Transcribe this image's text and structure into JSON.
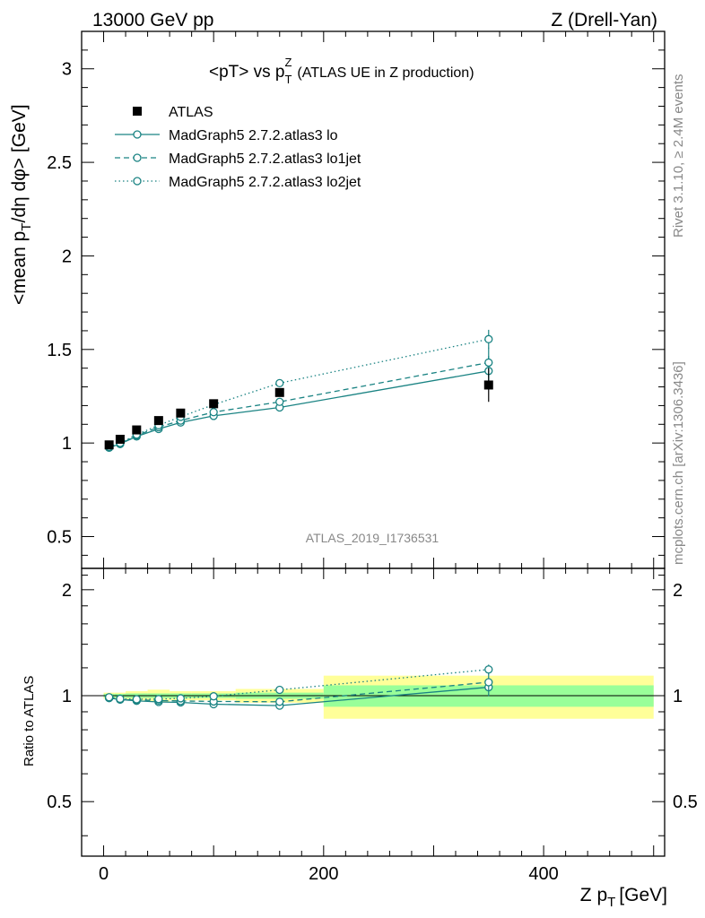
{
  "header": {
    "left": "13000 GeV pp",
    "right": "Z (Drell-Yan)"
  },
  "side_labels": {
    "rivet": "Rivet 3.1.10, ≥ 2.4M events",
    "mcplots": "mcplots.cern.ch [arXiv:1306.3436]"
  },
  "watermark": "ATLAS_2019_I1736531",
  "chart_data": {
    "type": "line",
    "title_main": "<pT> vs p",
    "title_sup": "Z",
    "title_sub": "T",
    "title_rest": "(ATLAS UE in Z production)",
    "ylabel_main": "<mean p",
    "ylabel_sub1": "T",
    "ylabel_rest": "/dη dφ> [GeV]",
    "xlabel_main": "Z p",
    "xlabel_sub": "T",
    "xlabel_rest": "[GeV]",
    "ratio_ylabel": "Ratio to ATLAS",
    "xlim": [
      -20,
      510
    ],
    "ylim": [
      0.33,
      3.2
    ],
    "ratio_ylim": [
      0.35,
      2.3
    ],
    "x_ticks": [
      0,
      200,
      400
    ],
    "x_tick_labels": [
      "0",
      "200",
      "400"
    ],
    "y_ticks": [
      0.5,
      1,
      1.5,
      2,
      2.5,
      3
    ],
    "y_tick_labels": [
      "0.5",
      "1",
      "1.5",
      "2",
      "2.5",
      "3"
    ],
    "ratio_ticks": [
      0.5,
      1,
      2
    ],
    "ratio_tick_labels": [
      "0.5",
      "1",
      "2"
    ],
    "legend_position": "top-left",
    "colors": {
      "data": "#000000",
      "mc": "#1a8383",
      "band_inner": "#99ff99",
      "band_outer": "#ffff99"
    },
    "data": {
      "name": "ATLAS",
      "x": [
        5,
        15,
        30,
        50,
        70,
        100,
        160,
        350
      ],
      "y": [
        0.99,
        1.02,
        1.07,
        1.12,
        1.16,
        1.21,
        1.27,
        1.31
      ],
      "yerr": [
        0.01,
        0.01,
        0.01,
        0.01,
        0.01,
        0.01,
        0.02,
        0.09
      ],
      "xedges": [
        0,
        10,
        20,
        40,
        60,
        80,
        120,
        200,
        500
      ],
      "ratio_band_inner": [
        0.012,
        0.012,
        0.015,
        0.015,
        0.015,
        0.015,
        0.02,
        0.07
      ],
      "ratio_band_outer": [
        0.02,
        0.02,
        0.03,
        0.04,
        0.03,
        0.03,
        0.045,
        0.14
      ]
    },
    "series": [
      {
        "name": "MadGraph5 2.7.2.atlas3 lo",
        "style": "solid",
        "x": [
          5,
          15,
          30,
          50,
          70,
          100,
          160,
          350
        ],
        "y": [
          0.975,
          0.995,
          1.035,
          1.075,
          1.11,
          1.145,
          1.19,
          1.385
        ],
        "yerr": [
          0.005,
          0.005,
          0.005,
          0.005,
          0.005,
          0.007,
          0.015,
          0.08
        ],
        "ratio": [
          0.985,
          0.975,
          0.967,
          0.96,
          0.957,
          0.946,
          0.937,
          1.057
        ]
      },
      {
        "name": "MadGraph5 2.7.2.atlas3 lo1jet",
        "style": "dashed",
        "x": [
          5,
          15,
          30,
          50,
          70,
          100,
          160,
          350
        ],
        "y": [
          0.975,
          0.995,
          1.04,
          1.085,
          1.12,
          1.165,
          1.22,
          1.43
        ],
        "yerr": [
          0.005,
          0.005,
          0.005,
          0.005,
          0.005,
          0.007,
          0.015,
          0.08
        ],
        "ratio": [
          0.985,
          0.975,
          0.972,
          0.969,
          0.966,
          0.963,
          0.961,
          1.092
        ]
      },
      {
        "name": "MadGraph5 2.7.2.atlas3 lo2jet",
        "style": "dotted",
        "x": [
          5,
          15,
          30,
          50,
          70,
          100,
          160,
          350
        ],
        "y": [
          0.98,
          1.0,
          1.045,
          1.095,
          1.14,
          1.205,
          1.32,
          1.555
        ],
        "yerr": [
          0.005,
          0.005,
          0.005,
          0.005,
          0.005,
          0.007,
          0.015,
          0.05
        ],
        "ratio": [
          0.99,
          0.98,
          0.977,
          0.978,
          0.983,
          0.996,
          1.039,
          1.187
        ]
      }
    ]
  }
}
